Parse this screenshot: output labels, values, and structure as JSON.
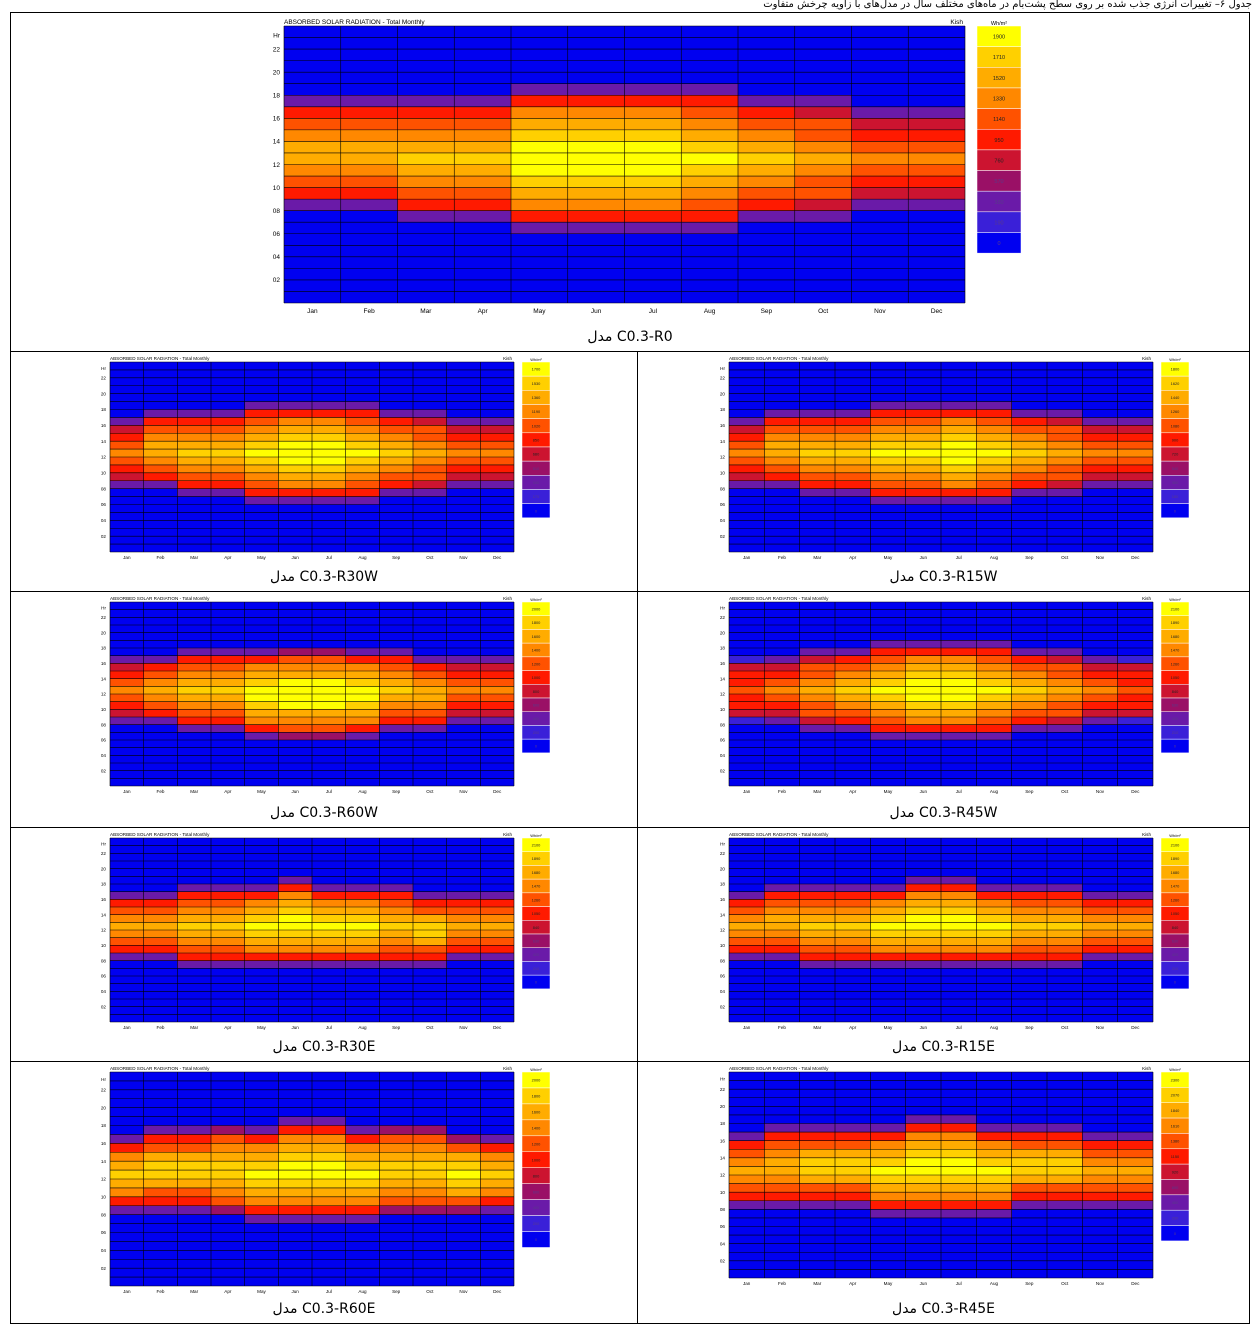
{
  "header_text": "جدول ۶– تغییرات انرژی جذب شده بر روی سطح پشت‌بام در ماه‌های مختلف سال در مدل‌های با زاویه چرخش متفاوت",
  "common": {
    "title": "ABSORBED SOLAR RADIATION - Total Monthly",
    "location": "Kish",
    "unit": "Wh/m²",
    "y_label": "Hr",
    "months": [
      "Jan",
      "Feb",
      "Mar",
      "Apr",
      "May",
      "Jun",
      "Jul",
      "Aug",
      "Sep",
      "Oct",
      "Nov",
      "Dec"
    ],
    "hour_ticks": [
      "22",
      "20",
      "18",
      "16",
      "14",
      "12",
      "10",
      "08",
      "06",
      "04",
      "02"
    ],
    "palette": [
      "#0000f0",
      "#3a20d8",
      "#6a1aa8",
      "#9a1066",
      "#cc1430",
      "#ff1a00",
      "#ff5200",
      "#ff8800",
      "#ffac00",
      "#ffd000",
      "#ffff00"
    ]
  },
  "chart_data": [
    {
      "id": "R0",
      "caption": "مدل C0.3-R0",
      "type": "heatmap",
      "legend": [
        "1900",
        "1710",
        "1520",
        "1330",
        "1140",
        "950",
        "760",
        "570",
        "380",
        "190",
        "0"
      ],
      "sunrise": [
        8,
        8,
        7,
        7,
        6,
        6,
        6,
        6,
        7,
        7,
        8,
        8
      ],
      "sunset": [
        18,
        18,
        18,
        18,
        19,
        19,
        19,
        19,
        18,
        18,
        17,
        17
      ],
      "peak": [
        7,
        7,
        8,
        8,
        10,
        10,
        10,
        9,
        8,
        7,
        6,
        6
      ]
    },
    {
      "id": "R15W",
      "caption": "مدل C0.3-R15W",
      "type": "heatmap",
      "legend": [
        "1800",
        "1620",
        "1440",
        "1260",
        "1080",
        "900",
        "720",
        "540",
        "360",
        "180",
        "0"
      ],
      "sunrise": [
        8,
        8,
        7,
        7,
        6,
        6,
        6,
        6,
        7,
        7,
        8,
        8
      ],
      "sunset": [
        17,
        18,
        18,
        18,
        19,
        19,
        19,
        19,
        18,
        18,
        17,
        17
      ],
      "peak": [
        6,
        7,
        8,
        8,
        9,
        9,
        10,
        9,
        8,
        7,
        6,
        6
      ]
    },
    {
      "id": "R30W",
      "caption": "مدل C0.3-R30W",
      "type": "heatmap",
      "legend": [
        "1700",
        "1530",
        "1360",
        "1190",
        "1020",
        "850",
        "680",
        "510",
        "340",
        "170",
        "0"
      ],
      "sunrise": [
        8,
        8,
        7,
        7,
        6,
        6,
        6,
        6,
        7,
        7,
        8,
        8
      ],
      "sunset": [
        17,
        18,
        18,
        18,
        19,
        19,
        19,
        19,
        18,
        18,
        17,
        17
      ],
      "peak": [
        6,
        7,
        8,
        8,
        9,
        10,
        10,
        9,
        8,
        7,
        6,
        6
      ]
    },
    {
      "id": "R45W",
      "caption": "مدل C0.3-R45W",
      "type": "heatmap",
      "legend": [
        "2100",
        "1890",
        "1680",
        "1470",
        "1260",
        "1050",
        "840",
        "630",
        "420",
        "210",
        "0"
      ],
      "sunrise": [
        8,
        8,
        7,
        7,
        6,
        6,
        6,
        6,
        7,
        7,
        8,
        8
      ],
      "sunset": [
        17,
        17,
        18,
        18,
        19,
        19,
        19,
        19,
        18,
        18,
        17,
        17
      ],
      "peak": [
        5,
        6,
        7,
        8,
        9,
        10,
        10,
        9,
        8,
        7,
        6,
        5
      ]
    },
    {
      "id": "R60W",
      "caption": "مدل C0.3-R60W",
      "type": "heatmap",
      "legend": [
        "2000",
        "1800",
        "1600",
        "1400",
        "1200",
        "1000",
        "800",
        "600",
        "400",
        "200",
        "0"
      ],
      "sunrise": [
        8,
        8,
        7,
        7,
        6,
        6,
        6,
        6,
        7,
        7,
        8,
        8
      ],
      "sunset": [
        17,
        17,
        18,
        18,
        18,
        18,
        18,
        18,
        18,
        17,
        17,
        17
      ],
      "peak": [
        6,
        7,
        8,
        8,
        9,
        10,
        10,
        9,
        8,
        7,
        6,
        6
      ]
    },
    {
      "id": "R15E",
      "caption": "مدل C0.3-R15E",
      "type": "heatmap",
      "legend": [
        "2100",
        "1890",
        "1680",
        "1470",
        "1260",
        "1050",
        "840",
        "630",
        "420",
        "210",
        "0"
      ],
      "sunrise": [
        8,
        8,
        7,
        7,
        7,
        7,
        7,
        7,
        7,
        7,
        8,
        8
      ],
      "sunset": [
        17,
        18,
        18,
        18,
        18,
        19,
        19,
        18,
        18,
        18,
        17,
        17
      ],
      "peak": [
        7,
        7,
        8,
        8,
        9,
        9,
        9,
        9,
        8,
        8,
        7,
        7
      ]
    },
    {
      "id": "R30E",
      "caption": "مدل C0.3-R30E",
      "type": "heatmap",
      "legend": [
        "2100",
        "1890",
        "1680",
        "1470",
        "1260",
        "1050",
        "840",
        "630",
        "420",
        "210",
        "0"
      ],
      "sunrise": [
        8,
        8,
        7,
        7,
        7,
        7,
        7,
        7,
        7,
        7,
        8,
        8
      ],
      "sunset": [
        17,
        17,
        18,
        18,
        18,
        19,
        18,
        18,
        18,
        17,
        17,
        17
      ],
      "peak": [
        7,
        7,
        8,
        8,
        9,
        9,
        9,
        9,
        8,
        8,
        7,
        7
      ]
    },
    {
      "id": "R45E",
      "caption": "مدل C0.3-R45E",
      "type": "heatmap",
      "legend": [
        "2300",
        "2070",
        "1840",
        "1610",
        "1380",
        "1150",
        "920",
        "690",
        "460",
        "230",
        "0"
      ],
      "sunrise": [
        8,
        8,
        8,
        8,
        7,
        7,
        7,
        7,
        8,
        8,
        8,
        8
      ],
      "sunset": [
        17,
        18,
        18,
        18,
        18,
        19,
        19,
        18,
        18,
        18,
        17,
        17
      ],
      "peak": [
        7,
        7,
        8,
        8,
        9,
        9,
        9,
        9,
        8,
        8,
        7,
        7
      ]
    },
    {
      "id": "R60E",
      "caption": "مدل C0.3-R60E",
      "type": "heatmap",
      "legend": [
        "2000",
        "1800",
        "1600",
        "1400",
        "1200",
        "1000",
        "800",
        "600",
        "400",
        "200",
        "0"
      ],
      "sunrise": [
        8,
        8,
        8,
        8,
        7,
        7,
        7,
        7,
        8,
        8,
        8,
        8
      ],
      "sunset": [
        17,
        18,
        18,
        18,
        18,
        19,
        19,
        18,
        18,
        18,
        17,
        17
      ],
      "peak": [
        8,
        8,
        8,
        9,
        9,
        9,
        9,
        9,
        9,
        9,
        9,
        8
      ]
    }
  ]
}
